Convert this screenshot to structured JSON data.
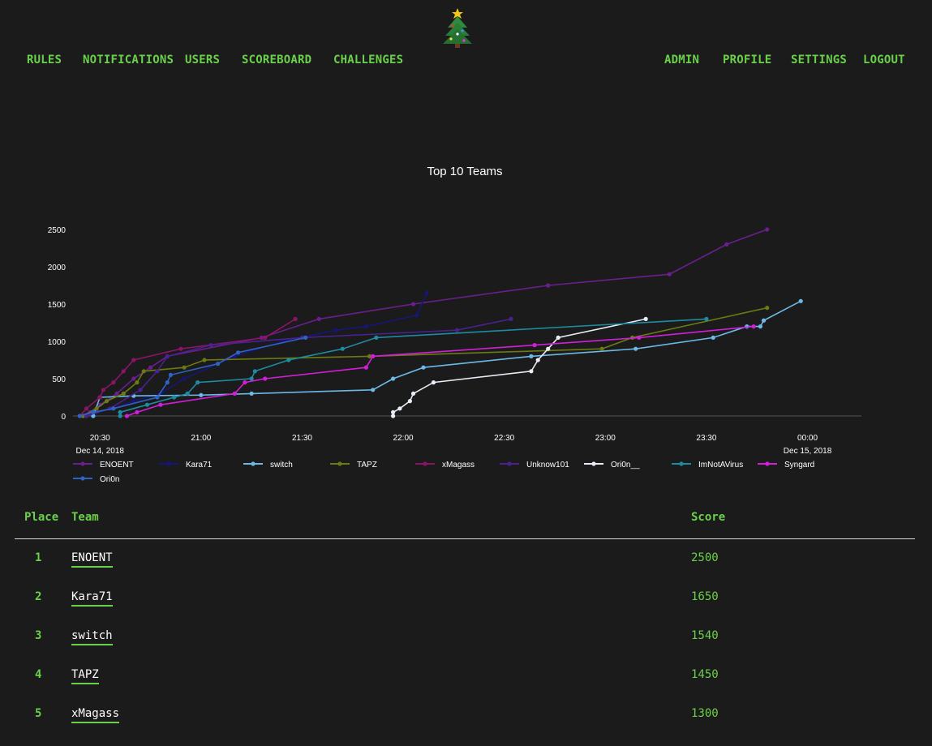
{
  "nav": {
    "left": [
      "RULES",
      "NOTIFICATIONS",
      "USERS",
      "SCOREBOARD",
      "CHALLENGES"
    ],
    "right": [
      "ADMIN",
      "PROFILE",
      "SETTINGS",
      "LOGOUT"
    ]
  },
  "logo": {
    "icon": "christmas-tree-icon"
  },
  "colors": {
    "accent": "#6ad14a",
    "background": "#1b1b1b"
  },
  "chart_data": {
    "type": "line",
    "title": "Top 10 Teams",
    "xlabel": "",
    "ylabel": "",
    "ylim": [
      0,
      2500
    ],
    "y_ticks": [
      0,
      500,
      1000,
      1500,
      2000,
      2500
    ],
    "x_ticks": [
      {
        "time": "20:30",
        "sub": "Dec 14, 2018"
      },
      {
        "time": "21:00",
        "sub": ""
      },
      {
        "time": "21:30",
        "sub": ""
      },
      {
        "time": "22:00",
        "sub": ""
      },
      {
        "time": "22:30",
        "sub": ""
      },
      {
        "time": "23:00",
        "sub": ""
      },
      {
        "time": "23:30",
        "sub": ""
      },
      {
        "time": "00:00",
        "sub": "Dec 15, 2018"
      }
    ],
    "x_range": [
      "2018-12-14 20:22",
      "2018-12-15 00:16"
    ],
    "series": [
      {
        "name": "ENOENT",
        "color": "#6b1e8e",
        "points": [
          [
            "20:24",
            0
          ],
          [
            "20:27",
            50
          ],
          [
            "20:30",
            150
          ],
          [
            "20:35",
            300
          ],
          [
            "20:40",
            500
          ],
          [
            "20:45",
            650
          ],
          [
            "20:50",
            800
          ],
          [
            "21:18",
            1050
          ],
          [
            "21:35",
            1300
          ],
          [
            "22:03",
            1500
          ],
          [
            "22:43",
            1750
          ],
          [
            "23:19",
            1900
          ],
          [
            "23:36",
            2300
          ],
          [
            "23:48",
            2500
          ]
        ]
      },
      {
        "name": "Kara71",
        "color": "#16167a",
        "points": [
          [
            "20:25",
            0
          ],
          [
            "20:29",
            50
          ],
          [
            "20:34",
            100
          ],
          [
            "20:40",
            200
          ],
          [
            "20:48",
            300
          ],
          [
            "20:55",
            500
          ],
          [
            "21:10",
            800
          ],
          [
            "21:24",
            1000
          ],
          [
            "21:40",
            1150
          ],
          [
            "21:49",
            1200
          ],
          [
            "22:04",
            1350
          ],
          [
            "22:07",
            1650
          ]
        ]
      },
      {
        "name": "switch",
        "color": "#6cb8e6",
        "points": [
          [
            "20:28",
            0
          ],
          [
            "20:30",
            250
          ],
          [
            "20:40",
            270
          ],
          [
            "21:00",
            280
          ],
          [
            "21:15",
            300
          ],
          [
            "21:51",
            350
          ],
          [
            "21:57",
            500
          ],
          [
            "22:06",
            650
          ],
          [
            "22:38",
            800
          ],
          [
            "23:09",
            900
          ],
          [
            "23:32",
            1050
          ],
          [
            "23:42",
            1200
          ],
          [
            "23:46",
            1200
          ],
          [
            "23:47",
            1280
          ],
          [
            "23:58",
            1540
          ]
        ]
      },
      {
        "name": "TAPZ",
        "color": "#6b7a12",
        "points": [
          [
            "20:25",
            0
          ],
          [
            "20:29",
            100
          ],
          [
            "20:32",
            200
          ],
          [
            "20:37",
            300
          ],
          [
            "20:41",
            450
          ],
          [
            "20:43",
            600
          ],
          [
            "20:55",
            650
          ],
          [
            "21:01",
            750
          ],
          [
            "21:50",
            800
          ],
          [
            "22:59",
            900
          ],
          [
            "23:08",
            1050
          ],
          [
            "23:48",
            1450
          ]
        ]
      },
      {
        "name": "xMagass",
        "color": "#8b1466",
        "points": [
          [
            "20:24",
            0
          ],
          [
            "20:26",
            100
          ],
          [
            "20:30",
            250
          ],
          [
            "20:31",
            350
          ],
          [
            "20:34",
            450
          ],
          [
            "20:37",
            600
          ],
          [
            "20:40",
            750
          ],
          [
            "20:54",
            900
          ],
          [
            "21:19",
            1050
          ],
          [
            "21:28",
            1300
          ]
        ]
      },
      {
        "name": "Unknow101",
        "color": "#4a2190",
        "points": [
          [
            "20:26",
            0
          ],
          [
            "20:33",
            100
          ],
          [
            "20:42",
            350
          ],
          [
            "20:47",
            600
          ],
          [
            "20:50",
            800
          ],
          [
            "21:03",
            950
          ],
          [
            "21:30",
            1050
          ],
          [
            "22:16",
            1150
          ],
          [
            "22:32",
            1300
          ]
        ]
      },
      {
        "name": "Ori0n__",
        "color": "#e8ecf4",
        "points": [
          [
            "21:57",
            0
          ],
          [
            "21:57",
            50
          ],
          [
            "21:59",
            100
          ],
          [
            "22:02",
            200
          ],
          [
            "22:03",
            300
          ],
          [
            "22:09",
            450
          ],
          [
            "22:38",
            600
          ],
          [
            "22:40",
            750
          ],
          [
            "22:43",
            900
          ],
          [
            "22:46",
            1050
          ],
          [
            "23:12",
            1300
          ]
        ]
      },
      {
        "name": "ImNotAVirus",
        "color": "#1d8ca2",
        "points": [
          [
            "20:36",
            0
          ],
          [
            "20:36",
            50
          ],
          [
            "20:44",
            150
          ],
          [
            "20:52",
            250
          ],
          [
            "20:56",
            300
          ],
          [
            "20:59",
            450
          ],
          [
            "21:15",
            500
          ],
          [
            "21:16",
            600
          ],
          [
            "21:26",
            750
          ],
          [
            "21:42",
            900
          ],
          [
            "21:52",
            1050
          ],
          [
            "23:30",
            1300
          ]
        ]
      },
      {
        "name": "Syngard",
        "color": "#d21ed8",
        "points": [
          [
            "20:38",
            0
          ],
          [
            "20:41",
            50
          ],
          [
            "20:48",
            150
          ],
          [
            "21:10",
            300
          ],
          [
            "21:13",
            450
          ],
          [
            "21:19",
            500
          ],
          [
            "21:49",
            650
          ],
          [
            "21:51",
            800
          ],
          [
            "22:39",
            950
          ],
          [
            "23:10",
            1050
          ],
          [
            "23:44",
            1200
          ]
        ]
      },
      {
        "name": "Ori0n",
        "color": "#2e63c2",
        "points": [
          [
            "20:24",
            0
          ],
          [
            "20:28",
            50
          ],
          [
            "20:34",
            100
          ],
          [
            "20:47",
            250
          ],
          [
            "20:50",
            450
          ],
          [
            "20:51",
            550
          ],
          [
            "21:05",
            700
          ],
          [
            "21:11",
            850
          ],
          [
            "21:31",
            1050
          ]
        ]
      }
    ]
  },
  "table": {
    "headers": {
      "place": "Place",
      "team": "Team",
      "score": "Score"
    },
    "rows": [
      {
        "place": "1",
        "team": "ENOENT",
        "score": "2500"
      },
      {
        "place": "2",
        "team": "Kara71",
        "score": "1650"
      },
      {
        "place": "3",
        "team": "switch",
        "score": "1540"
      },
      {
        "place": "4",
        "team": "TAPZ",
        "score": "1450"
      },
      {
        "place": "5",
        "team": "xMagass",
        "score": "1300"
      }
    ]
  }
}
